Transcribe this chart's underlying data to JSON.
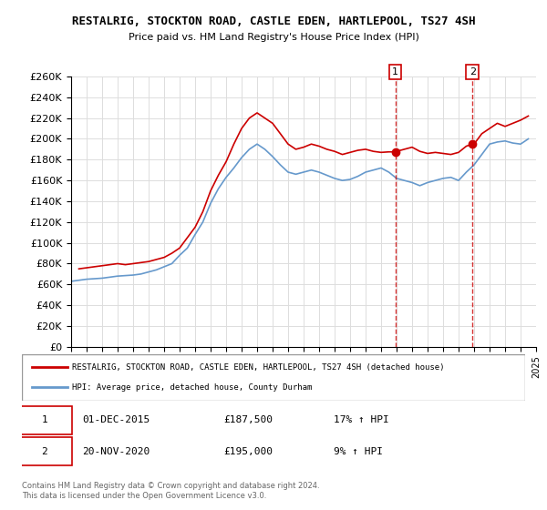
{
  "title": "RESTALRIG, STOCKTON ROAD, CASTLE EDEN, HARTLEPOOL, TS27 4SH",
  "subtitle": "Price paid vs. HM Land Registry's House Price Index (HPI)",
  "ylabel_ticks": [
    "£0",
    "£20K",
    "£40K",
    "£60K",
    "£80K",
    "£100K",
    "£120K",
    "£140K",
    "£160K",
    "£180K",
    "£200K",
    "£220K",
    "£240K",
    "£260K"
  ],
  "ylim": [
    0,
    260000
  ],
  "yticks": [
    0,
    20000,
    40000,
    60000,
    80000,
    100000,
    120000,
    140000,
    160000,
    180000,
    200000,
    220000,
    240000,
    260000
  ],
  "red_color": "#cc0000",
  "blue_color": "#6699cc",
  "marker_color_red": "#cc0000",
  "legend_label_red": "RESTALRIG, STOCKTON ROAD, CASTLE EDEN, HARTLEPOOL, TS27 4SH (detached house)",
  "legend_label_blue": "HPI: Average price, detached house, County Durham",
  "annotation1_date": "01-DEC-2015",
  "annotation1_price": "£187,500",
  "annotation1_hpi": "17% ↑ HPI",
  "annotation2_date": "20-NOV-2020",
  "annotation2_price": "£195,000",
  "annotation2_hpi": "9% ↑ HPI",
  "footer": "Contains HM Land Registry data © Crown copyright and database right 2024.\nThis data is licensed under the Open Government Licence v3.0.",
  "red_x": [
    1995.5,
    1996.0,
    1996.5,
    1997.0,
    1997.5,
    1998.0,
    1998.5,
    1999.0,
    1999.5,
    2000.0,
    2000.5,
    2001.0,
    2001.5,
    2002.0,
    2002.5,
    2003.0,
    2003.5,
    2004.0,
    2004.5,
    2005.0,
    2005.5,
    2006.0,
    2006.5,
    2007.0,
    2007.5,
    2008.0,
    2008.5,
    2009.0,
    2009.5,
    2010.0,
    2010.5,
    2011.0,
    2011.5,
    2012.0,
    2012.5,
    2013.0,
    2013.5,
    2014.0,
    2014.5,
    2015.0,
    2015.5,
    2015.92,
    2016.0,
    2016.5,
    2017.0,
    2017.5,
    2018.0,
    2018.5,
    2019.0,
    2019.5,
    2020.0,
    2020.5,
    2020.9,
    2021.0,
    2021.5,
    2022.0,
    2022.5,
    2023.0,
    2023.5,
    2024.0,
    2024.5
  ],
  "red_y": [
    75000,
    76000,
    77000,
    78000,
    79000,
    80000,
    79000,
    80000,
    81000,
    82000,
    84000,
    86000,
    90000,
    95000,
    105000,
    115000,
    130000,
    150000,
    165000,
    178000,
    195000,
    210000,
    220000,
    225000,
    220000,
    215000,
    205000,
    195000,
    190000,
    192000,
    195000,
    193000,
    190000,
    188000,
    185000,
    187000,
    189000,
    190000,
    188000,
    187000,
    187500,
    187500,
    188000,
    190000,
    192000,
    188000,
    186000,
    187000,
    186000,
    185000,
    187000,
    193000,
    195000,
    195000,
    205000,
    210000,
    215000,
    212000,
    215000,
    218000,
    222000
  ],
  "blue_x": [
    1995.0,
    1995.5,
    1996.0,
    1996.5,
    1997.0,
    1997.5,
    1998.0,
    1998.5,
    1999.0,
    1999.5,
    2000.0,
    2000.5,
    2001.0,
    2001.5,
    2002.0,
    2002.5,
    2003.0,
    2003.5,
    2004.0,
    2004.5,
    2005.0,
    2005.5,
    2006.0,
    2006.5,
    2007.0,
    2007.5,
    2008.0,
    2008.5,
    2009.0,
    2009.5,
    2010.0,
    2010.5,
    2011.0,
    2011.5,
    2012.0,
    2012.5,
    2013.0,
    2013.5,
    2014.0,
    2014.5,
    2015.0,
    2015.5,
    2016.0,
    2016.5,
    2017.0,
    2017.5,
    2018.0,
    2018.5,
    2019.0,
    2019.5,
    2020.0,
    2020.5,
    2021.0,
    2021.5,
    2022.0,
    2022.5,
    2023.0,
    2023.5,
    2024.0,
    2024.5
  ],
  "blue_y": [
    63000,
    64000,
    65000,
    65500,
    66000,
    67000,
    68000,
    68500,
    69000,
    70000,
    72000,
    74000,
    77000,
    80000,
    88000,
    95000,
    108000,
    120000,
    138000,
    152000,
    163000,
    172000,
    182000,
    190000,
    195000,
    190000,
    183000,
    175000,
    168000,
    166000,
    168000,
    170000,
    168000,
    165000,
    162000,
    160000,
    161000,
    164000,
    168000,
    170000,
    172000,
    168000,
    162000,
    160000,
    158000,
    155000,
    158000,
    160000,
    162000,
    163000,
    160000,
    168000,
    175000,
    185000,
    195000,
    197000,
    198000,
    196000,
    195000,
    200000
  ],
  "marker1_x": 2015.92,
  "marker1_y": 187500,
  "marker2_x": 2020.9,
  "marker2_y": 195000,
  "xmin": 1995,
  "xmax": 2025
}
